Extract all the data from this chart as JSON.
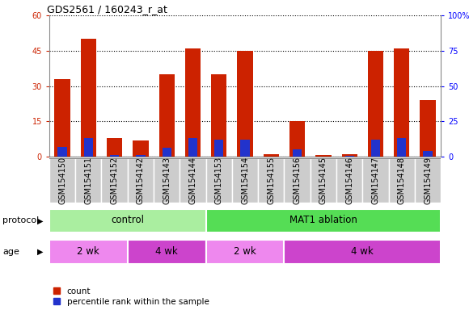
{
  "title": "GDS2561 / 160243_r_at",
  "samples": [
    "GSM154150",
    "GSM154151",
    "GSM154152",
    "GSM154142",
    "GSM154143",
    "GSM154144",
    "GSM154153",
    "GSM154154",
    "GSM154155",
    "GSM154156",
    "GSM154145",
    "GSM154146",
    "GSM154147",
    "GSM154148",
    "GSM154149"
  ],
  "count": [
    33,
    50,
    8,
    7,
    35,
    46,
    35,
    45,
    1,
    15,
    0.5,
    1,
    45,
    46,
    24
  ],
  "percentile": [
    7,
    13,
    1,
    1,
    6,
    13,
    12,
    12,
    0,
    5,
    0,
    0.5,
    12,
    13,
    4
  ],
  "red_color": "#cc2200",
  "blue_color": "#2233cc",
  "ylim_left": [
    0,
    60
  ],
  "ylim_right": [
    0,
    100
  ],
  "yticks_left": [
    0,
    15,
    30,
    45,
    60
  ],
  "ytick_labels_left": [
    "0",
    "15",
    "30",
    "45",
    "60"
  ],
  "yticks_right_vals": [
    0,
    25,
    50,
    75,
    100
  ],
  "ytick_labels_right": [
    "0",
    "25",
    "50",
    "75",
    "100%"
  ],
  "protocol_groups": [
    {
      "label": "control",
      "start": 0,
      "end": 6,
      "color": "#aaeea0"
    },
    {
      "label": "MAT1 ablation",
      "start": 6,
      "end": 15,
      "color": "#55dd55"
    }
  ],
  "age_groups": [
    {
      "label": "2 wk",
      "start": 0,
      "end": 3,
      "color": "#ee88ee"
    },
    {
      "label": "4 wk",
      "start": 3,
      "end": 6,
      "color": "#cc44cc"
    },
    {
      "label": "2 wk",
      "start": 6,
      "end": 9,
      "color": "#ee88ee"
    },
    {
      "label": "4 wk",
      "start": 9,
      "end": 15,
      "color": "#cc44cc"
    }
  ],
  "bar_width": 0.6,
  "blue_bar_width": 0.35,
  "plot_bg": "#ffffff",
  "tick_fontsize": 7,
  "label_fontsize": 8,
  "protocol_label": "protocol",
  "age_label": "age",
  "legend_count": "count",
  "legend_pct": "percentile rank within the sample",
  "xticklabel_bg": "#cccccc"
}
